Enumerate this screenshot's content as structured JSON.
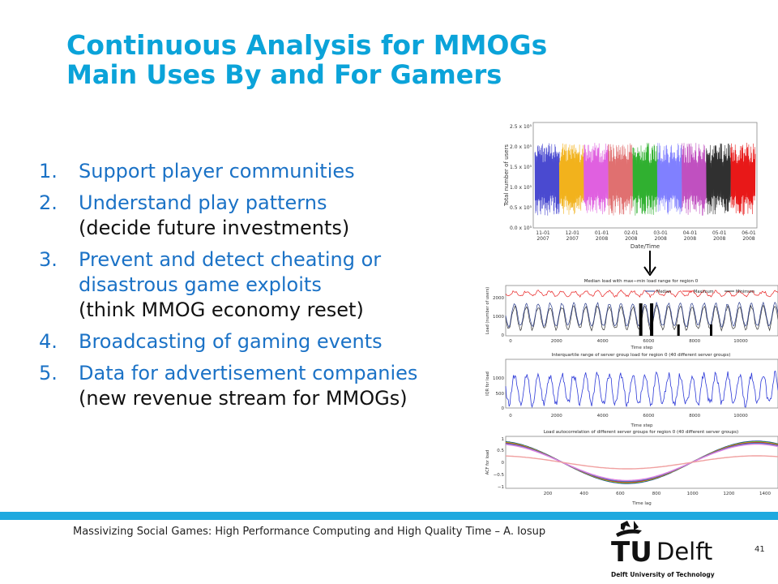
{
  "title": {
    "main": "Continuous Analysis for MMOGs",
    "sub": "Main Uses By and For Gamers"
  },
  "items": [
    {
      "num": "1.",
      "main": "Support player communities",
      "sub": ""
    },
    {
      "num": "2.",
      "main": "Understand play patterns",
      "sub": "(decide future investments)"
    },
    {
      "num": "3.",
      "main": "Prevent and detect cheating or disastrous game exploits",
      "sub": "(think MMOG economy reset)"
    },
    {
      "num": "4.",
      "main": "Broadcasting of gaming events",
      "sub": ""
    },
    {
      "num": "5.",
      "main": "Data for advertisement companies",
      "sub": "(new revenue stream for MMOGs)"
    }
  ],
  "figure_top": {
    "ylabel": "Total number of users",
    "xlabel": "Date/Time",
    "yticks": [
      "2.5 x 10⁵",
      "2.0 x 10⁵",
      "1.5 x 10⁵",
      "1.0 x 10⁵",
      "0.5 x 10⁵",
      "0.0 x 10⁵"
    ],
    "xticks": [
      "11-01 2007",
      "12-01 2007",
      "01-01 2008",
      "02-01 2008",
      "03-01 2008",
      "04-01 2008",
      "05-01 2008",
      "06-01 2008"
    ],
    "colors": [
      "#4a4ad0",
      "#f2b21c",
      "#e060e0",
      "#e07070",
      "#30b030",
      "#8080ff",
      "#c050c0",
      "#303030",
      "#e81818"
    ]
  },
  "figure_bottom": {
    "panel1": {
      "title": "Median load with max−min load range for region 0",
      "ylabel": "Load (number of users)",
      "xlabel": "Time step",
      "yticks": [
        "2000",
        "1000",
        "0"
      ],
      "xticks": [
        "0",
        "2000",
        "4000",
        "6000",
        "8000",
        "10000"
      ],
      "legend": [
        "Median",
        "Maximum",
        "Minimum"
      ]
    },
    "panel2": {
      "title": "Interquartile range of server group load for region 0 (40 different server groups)",
      "ylabel": "IQR for load",
      "xlabel": "Time step",
      "yticks": [
        "1000",
        "500",
        "0"
      ],
      "xticks": [
        "0",
        "2000",
        "4000",
        "6000",
        "8000",
        "10000"
      ]
    },
    "panel3": {
      "title": "Load autocorrelation of different server groups for region 0 (40 different server groups)",
      "ylabel": "ACF for load",
      "xlabel": "Time lag",
      "yticks": [
        "1",
        "0.5",
        "0",
        "−0.5",
        "−1"
      ],
      "xticks": [
        "200",
        "400",
        "600",
        "800",
        "1000",
        "1200",
        "1400"
      ]
    }
  },
  "footer": {
    "text": "Massivizing Social Games: High Performance Computing and High Quality Time – A. Iosup",
    "page": "41",
    "logo_tu": "TU",
    "logo_delft": "Delft",
    "logo_caption": "Delft University of Technology",
    "bar_color": "#1fa9df"
  }
}
